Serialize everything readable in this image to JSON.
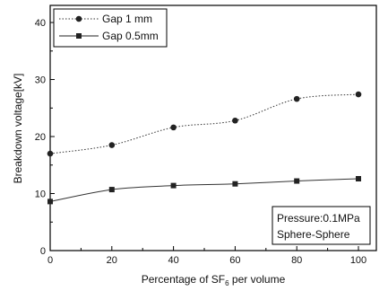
{
  "chart_data": {
    "type": "line",
    "xlabel_parts": {
      "before": "Percentage of SF",
      "subscript": "6",
      "after": " per volume"
    },
    "ylabel": "Breakdown voltage[kV]",
    "x_ticks": [
      0,
      20,
      40,
      60,
      80,
      100
    ],
    "y_ticks": [
      0,
      10,
      20,
      30,
      40
    ],
    "xlim": [
      0,
      100
    ],
    "ylim": [
      0,
      43
    ],
    "grid": false,
    "legend_position": "top-left",
    "series": [
      {
        "name": "Gap  1 mm",
        "marker": "circle",
        "line_style": "dotted",
        "x": [
          0,
          20,
          40,
          60,
          80,
          100
        ],
        "y": [
          17.0,
          18.5,
          21.6,
          22.8,
          26.6,
          27.4
        ]
      },
      {
        "name": "Gap 0.5mm",
        "marker": "square",
        "line_style": "solid",
        "x": [
          0,
          20,
          40,
          60,
          80,
          100
        ],
        "y": [
          8.6,
          10.7,
          11.4,
          11.7,
          12.2,
          12.6
        ]
      }
    ],
    "annotation": {
      "lines": [
        "Pressure:0.1MPa",
        "Sphere-Sphere"
      ],
      "position": "bottom-right"
    }
  }
}
